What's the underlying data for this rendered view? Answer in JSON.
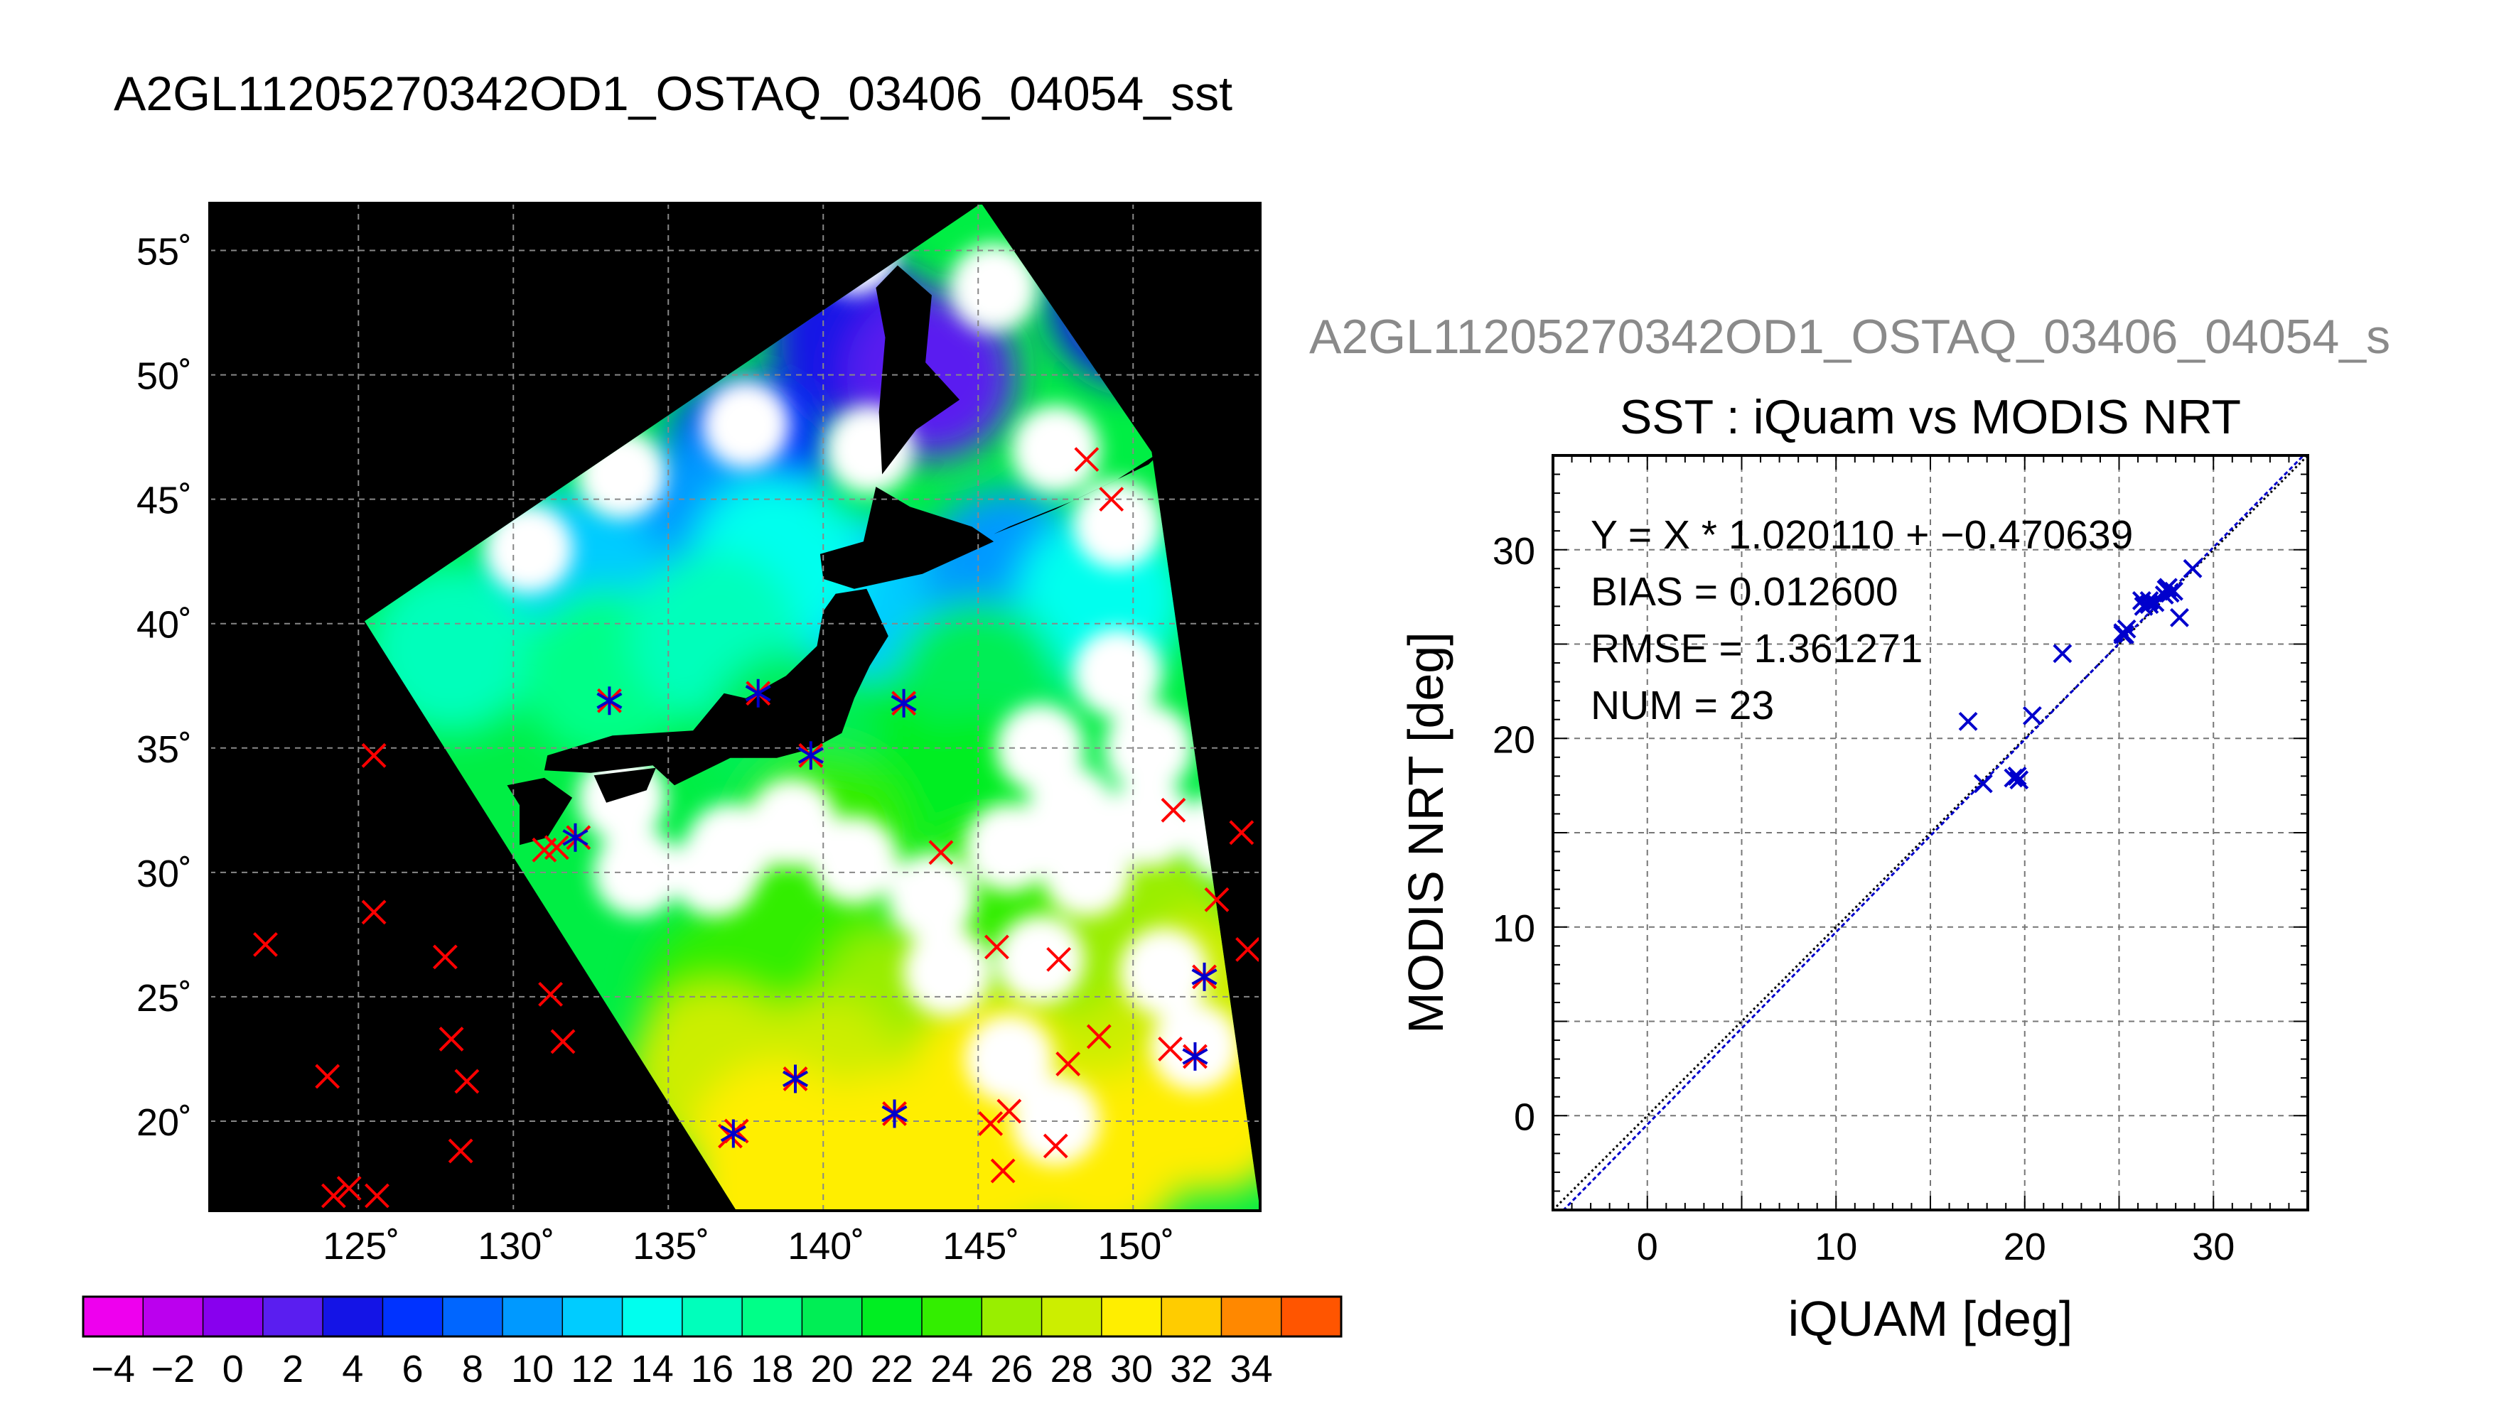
{
  "main_title": "A2GL11205270342OD1_OSTAQ_03406_04054_sst",
  "scatter_supertitle": "A2GL11205270342OD1_OSTAQ_03406_04054_s",
  "colors": {
    "background": "#ffffff",
    "land": "#000000",
    "match_marker": "#ff0000",
    "scatter_marker": "#0000cc",
    "grid": "#777777"
  },
  "map": {
    "lat_ticks": [
      {
        "value": 55,
        "label": "55˚"
      },
      {
        "value": 50,
        "label": "50˚"
      },
      {
        "value": 45,
        "label": "45˚"
      },
      {
        "value": 40,
        "label": "40˚"
      },
      {
        "value": 35,
        "label": "35˚"
      },
      {
        "value": 30,
        "label": "30˚"
      },
      {
        "value": 25,
        "label": "25˚"
      },
      {
        "value": 20,
        "label": "20˚"
      }
    ],
    "lon_ticks": [
      {
        "value": 125,
        "label": "125˚"
      },
      {
        "value": 130,
        "label": "130˚"
      },
      {
        "value": 135,
        "label": "135˚"
      },
      {
        "value": 140,
        "label": "140˚"
      },
      {
        "value": 145,
        "label": "145˚"
      },
      {
        "value": 150,
        "label": "150˚"
      }
    ],
    "lon_range": [
      120.2,
      154.1
    ],
    "lat_range": [
      16.4,
      56.9
    ],
    "swath_corners": [
      [
        125.2,
        40.1
      ],
      [
        145.1,
        56.9
      ],
      [
        150.6,
        46.9
      ],
      [
        154.1,
        16.4
      ],
      [
        137.2,
        16.4
      ]
    ],
    "sst_samples": [
      {
        "lon": 150.0,
        "lat": 53.0,
        "sst": 4
      },
      {
        "lon": 141.0,
        "lat": 51.5,
        "sst": 4
      },
      {
        "lon": 143.5,
        "lat": 50.0,
        "sst": 2
      },
      {
        "lon": 137.5,
        "lat": 46.5,
        "sst": 6
      },
      {
        "lon": 136.0,
        "lat": 44.0,
        "sst": 9
      },
      {
        "lon": 141.0,
        "lat": 41.0,
        "sst": 11
      },
      {
        "lon": 138.5,
        "lat": 42.5,
        "sst": 13
      },
      {
        "lon": 132.0,
        "lat": 42.0,
        "sst": 12
      },
      {
        "lon": 128.0,
        "lat": 39.0,
        "sst": 15
      },
      {
        "lon": 133.0,
        "lat": 38.0,
        "sst": 17
      },
      {
        "lon": 136.5,
        "lat": 39.5,
        "sst": 16
      },
      {
        "lon": 146.0,
        "lat": 42.0,
        "sst": 10
      },
      {
        "lon": 149.0,
        "lat": 41.0,
        "sst": 13
      },
      {
        "lon": 145.0,
        "lat": 37.5,
        "sst": 19
      },
      {
        "lon": 141.0,
        "lat": 34.5,
        "sst": 21
      },
      {
        "lon": 139.0,
        "lat": 35.5,
        "sst": 20
      },
      {
        "lon": 145.0,
        "lat": 33.0,
        "sst": 22
      },
      {
        "lon": 140.0,
        "lat": 31.5,
        "sst": 23
      },
      {
        "lon": 139.0,
        "lat": 28.0,
        "sst": 23
      },
      {
        "lon": 145.5,
        "lat": 28.5,
        "sst": 24
      },
      {
        "lon": 150.5,
        "lat": 28.0,
        "sst": 25
      },
      {
        "lon": 137.0,
        "lat": 25.0,
        "sst": 24
      },
      {
        "lon": 142.5,
        "lat": 24.5,
        "sst": 25
      },
      {
        "lon": 148.5,
        "lat": 24.5,
        "sst": 26
      },
      {
        "lon": 152.5,
        "lat": 25.0,
        "sst": 27
      },
      {
        "lon": 136.5,
        "lat": 22.0,
        "sst": 27
      },
      {
        "lon": 140.0,
        "lat": 21.5,
        "sst": 28
      },
      {
        "lon": 145.5,
        "lat": 21.5,
        "sst": 29
      },
      {
        "lon": 150.0,
        "lat": 21.5,
        "sst": 28
      },
      {
        "lon": 152.5,
        "lat": 20.5,
        "sst": 29
      },
      {
        "lon": 138.5,
        "lat": 19.0,
        "sst": 29
      },
      {
        "lon": 142.0,
        "lat": 18.5,
        "sst": 30
      },
      {
        "lon": 145.5,
        "lat": 18.5,
        "sst": 29
      },
      {
        "lon": 149.0,
        "lat": 18.5,
        "sst": 30
      },
      {
        "lon": 138.5,
        "lat": 17.0,
        "sst": 29
      },
      {
        "lon": 143.0,
        "lat": 16.8,
        "sst": 29
      }
    ],
    "cloud_samples": [
      {
        "lon": 137.0,
        "lat": 31.0
      },
      {
        "lon": 141.0,
        "lat": 30.5
      },
      {
        "lon": 146.0,
        "lat": 31.0
      },
      {
        "lon": 150.5,
        "lat": 32.0
      },
      {
        "lon": 134.0,
        "lat": 30.0
      },
      {
        "lon": 143.5,
        "lat": 29.0
      },
      {
        "lon": 148.5,
        "lat": 30.0
      },
      {
        "lon": 147.0,
        "lat": 26.5
      },
      {
        "lon": 146.0,
        "lat": 22.5
      },
      {
        "lon": 147.5,
        "lat": 20.0
      },
      {
        "lon": 151.0,
        "lat": 26.0
      },
      {
        "lon": 144.0,
        "lat": 26.0
      },
      {
        "lon": 136.5,
        "lat": 30.0
      },
      {
        "lon": 139.0,
        "lat": 32.0
      },
      {
        "lon": 133.5,
        "lat": 33.0
      },
      {
        "lon": 147.0,
        "lat": 35.0
      },
      {
        "lon": 150.5,
        "lat": 35.0
      },
      {
        "lon": 149.5,
        "lat": 38.0
      },
      {
        "lon": 149.5,
        "lat": 44.0
      },
      {
        "lon": 147.5,
        "lat": 47.0
      },
      {
        "lon": 145.5,
        "lat": 53.5
      },
      {
        "lon": 141.5,
        "lat": 47.0
      },
      {
        "lon": 137.5,
        "lat": 48.0
      },
      {
        "lon": 133.5,
        "lat": 46.0
      },
      {
        "lon": 130.5,
        "lat": 43.0
      },
      {
        "lon": 141.0,
        "lat": 55.0
      },
      {
        "lon": 152.0,
        "lat": 23.0
      },
      {
        "lon": 148.0,
        "lat": 32.5
      },
      {
        "lon": 153.0,
        "lat": 31.5
      }
    ],
    "land_patches": [
      {
        "name": "sakhalin",
        "lonlat": [
          [
            142.4,
            54.4
          ],
          [
            143.5,
            53.2
          ],
          [
            143.3,
            50.5
          ],
          [
            144.4,
            49.0
          ],
          [
            143.0,
            47.8
          ],
          [
            141.9,
            46.0
          ],
          [
            141.8,
            48.5
          ],
          [
            142.0,
            51.5
          ],
          [
            141.7,
            53.5
          ]
        ]
      },
      {
        "name": "hokkaido",
        "lonlat": [
          [
            141.7,
            45.5
          ],
          [
            142.8,
            44.7
          ],
          [
            144.8,
            43.9
          ],
          [
            145.5,
            43.3
          ],
          [
            143.2,
            42.0
          ],
          [
            141.0,
            41.4
          ],
          [
            140.0,
            41.8
          ],
          [
            139.9,
            42.8
          ],
          [
            141.3,
            43.3
          ]
        ]
      },
      {
        "name": "honshu",
        "lonlat": [
          [
            141.4,
            41.4
          ],
          [
            142.1,
            39.5
          ],
          [
            141.5,
            38.3
          ],
          [
            141.0,
            37.0
          ],
          [
            140.6,
            35.6
          ],
          [
            139.7,
            35.0
          ],
          [
            138.5,
            34.6
          ],
          [
            137.0,
            34.6
          ],
          [
            135.2,
            33.5
          ],
          [
            134.5,
            34.3
          ],
          [
            132.5,
            34.0
          ],
          [
            131.0,
            34.1
          ],
          [
            131.1,
            34.7
          ],
          [
            133.2,
            35.5
          ],
          [
            135.8,
            35.7
          ],
          [
            136.8,
            37.2
          ],
          [
            137.5,
            37.0
          ],
          [
            138.8,
            37.9
          ],
          [
            139.8,
            39.1
          ],
          [
            140.0,
            40.5
          ],
          [
            140.4,
            41.2
          ]
        ]
      },
      {
        "name": "shikoku",
        "lonlat": [
          [
            132.6,
            33.9
          ],
          [
            134.6,
            34.2
          ],
          [
            134.3,
            33.3
          ],
          [
            133.0,
            32.8
          ]
        ]
      },
      {
        "name": "kyushu",
        "lonlat": [
          [
            129.8,
            33.5
          ],
          [
            131.0,
            33.8
          ],
          [
            131.9,
            33.0
          ],
          [
            131.1,
            31.4
          ],
          [
            130.2,
            31.1
          ],
          [
            130.2,
            32.7
          ]
        ]
      },
      {
        "name": "kurils",
        "lonlat": [
          [
            145.5,
            43.6
          ],
          [
            147.5,
            44.6
          ],
          [
            149.5,
            45.8
          ],
          [
            151.0,
            47.0
          ],
          [
            150.5,
            46.4
          ],
          [
            148.0,
            44.9
          ],
          [
            146.0,
            43.9
          ]
        ]
      }
    ],
    "match_points": [
      {
        "lon": 125.5,
        "lat": 34.7
      },
      {
        "lon": 125.5,
        "lat": 28.4
      },
      {
        "lon": 122.0,
        "lat": 27.1
      },
      {
        "lon": 127.8,
        "lat": 26.6
      },
      {
        "lon": 128.0,
        "lat": 23.3
      },
      {
        "lon": 128.5,
        "lat": 21.6
      },
      {
        "lon": 124.0,
        "lat": 21.8
      },
      {
        "lon": 128.3,
        "lat": 18.8
      },
      {
        "lon": 124.2,
        "lat": 17.0
      },
      {
        "lon": 124.7,
        "lat": 17.3
      },
      {
        "lon": 125.6,
        "lat": 17.0
      },
      {
        "lon": 131.2,
        "lat": 25.1
      },
      {
        "lon": 131.6,
        "lat": 23.2
      },
      {
        "lon": 131.0,
        "lat": 30.9
      },
      {
        "lon": 131.4,
        "lat": 31.0
      },
      {
        "lon": 132.1,
        "lat": 31.4
      },
      {
        "lon": 133.1,
        "lat": 36.9
      },
      {
        "lon": 137.9,
        "lat": 37.2
      },
      {
        "lon": 139.6,
        "lat": 34.7
      },
      {
        "lon": 142.6,
        "lat": 36.8
      },
      {
        "lon": 143.8,
        "lat": 30.8
      },
      {
        "lon": 145.6,
        "lat": 27.0
      },
      {
        "lon": 147.6,
        "lat": 26.5
      },
      {
        "lon": 148.5,
        "lat": 46.6
      },
      {
        "lon": 149.3,
        "lat": 45.0
      },
      {
        "lon": 151.3,
        "lat": 32.5
      },
      {
        "lon": 153.5,
        "lat": 31.6
      },
      {
        "lon": 152.7,
        "lat": 28.9
      },
      {
        "lon": 153.7,
        "lat": 26.9
      },
      {
        "lon": 152.3,
        "lat": 25.8
      },
      {
        "lon": 151.2,
        "lat": 22.9
      },
      {
        "lon": 152.0,
        "lat": 22.6
      },
      {
        "lon": 148.9,
        "lat": 23.4
      },
      {
        "lon": 147.9,
        "lat": 22.3
      },
      {
        "lon": 145.4,
        "lat": 19.9
      },
      {
        "lon": 146.0,
        "lat": 20.4
      },
      {
        "lon": 145.8,
        "lat": 18.0
      },
      {
        "lon": 147.5,
        "lat": 19.0
      },
      {
        "lon": 142.3,
        "lat": 20.3
      },
      {
        "lon": 139.1,
        "lat": 21.7
      },
      {
        "lon": 137.0,
        "lat": 19.4
      },
      {
        "lon": 137.2,
        "lat": 19.6
      }
    ],
    "matched_points": [
      {
        "lon": 133.1,
        "lat": 36.9
      },
      {
        "lon": 137.9,
        "lat": 37.2
      },
      {
        "lon": 139.6,
        "lat": 34.7
      },
      {
        "lon": 142.6,
        "lat": 36.8
      },
      {
        "lon": 132.0,
        "lat": 31.4
      },
      {
        "lon": 152.3,
        "lat": 25.8
      },
      {
        "lon": 152.0,
        "lat": 22.6
      },
      {
        "lon": 139.1,
        "lat": 21.7
      },
      {
        "lon": 142.3,
        "lat": 20.3
      },
      {
        "lon": 137.1,
        "lat": 19.5
      }
    ]
  },
  "colorbar": {
    "min": -5,
    "max": 35,
    "bin_width": 2,
    "colors": [
      "#ee00ee",
      "#bb00ee",
      "#8800ee",
      "#5a1ef0",
      "#1414e6",
      "#0033ff",
      "#0066ff",
      "#0099ff",
      "#00ccff",
      "#00ffee",
      "#00ffbb",
      "#00ff88",
      "#00ee55",
      "#00ee22",
      "#33ee00",
      "#99ee00",
      "#ccee00",
      "#ffee00",
      "#ffcc00",
      "#ff8800",
      "#ff5500"
    ],
    "ticks": [
      {
        "value": -4,
        "label": "−4"
      },
      {
        "value": -2,
        "label": "−2"
      },
      {
        "value": 0,
        "label": "0"
      },
      {
        "value": 2,
        "label": "2"
      },
      {
        "value": 4,
        "label": "4"
      },
      {
        "value": 6,
        "label": "6"
      },
      {
        "value": 8,
        "label": "8"
      },
      {
        "value": 10,
        "label": "10"
      },
      {
        "value": 12,
        "label": "12"
      },
      {
        "value": 14,
        "label": "14"
      },
      {
        "value": 16,
        "label": "16"
      },
      {
        "value": 18,
        "label": "18"
      },
      {
        "value": 20,
        "label": "20"
      },
      {
        "value": 22,
        "label": "22"
      },
      {
        "value": 24,
        "label": "24"
      },
      {
        "value": 26,
        "label": "26"
      },
      {
        "value": 28,
        "label": "28"
      },
      {
        "value": 30,
        "label": "30"
      },
      {
        "value": 32,
        "label": "32"
      },
      {
        "value": 34,
        "label": "34"
      }
    ]
  },
  "chart_data": {
    "type": "scatter",
    "title": "SST : iQuam vs MODIS NRT",
    "xlabel": "iQUAM [deg]",
    "ylabel": "MODIS NRT [deg]",
    "xlim": [
      -5,
      35
    ],
    "ylim": [
      -5,
      35
    ],
    "xticks": [
      0,
      10,
      20,
      30
    ],
    "yticks": [
      0,
      10,
      20,
      30
    ],
    "grid": true,
    "regression": {
      "slope": 1.02011,
      "intercept": -0.470639
    },
    "stats_text": [
      "Y = X * 1.020110 + −0.470639",
      "BIAS = 0.012600",
      "RMSE = 1.361271",
      "NUM = 23"
    ],
    "points": [
      {
        "x": 17.0,
        "y": 20.9
      },
      {
        "x": 17.8,
        "y": 17.6
      },
      {
        "x": 19.4,
        "y": 17.9
      },
      {
        "x": 19.7,
        "y": 17.8
      },
      {
        "x": 19.6,
        "y": 18.0
      },
      {
        "x": 20.4,
        "y": 21.2
      },
      {
        "x": 22.0,
        "y": 24.5
      },
      {
        "x": 25.2,
        "y": 25.6
      },
      {
        "x": 25.4,
        "y": 25.8
      },
      {
        "x": 25.3,
        "y": 25.5
      },
      {
        "x": 26.2,
        "y": 27.3
      },
      {
        "x": 26.6,
        "y": 27.1
      },
      {
        "x": 26.9,
        "y": 27.2
      },
      {
        "x": 27.4,
        "y": 27.6
      },
      {
        "x": 27.6,
        "y": 28.0
      },
      {
        "x": 27.9,
        "y": 27.8
      },
      {
        "x": 28.2,
        "y": 26.4
      },
      {
        "x": 28.9,
        "y": 29.0
      },
      {
        "x": 26.6,
        "y": 27.3
      },
      {
        "x": 25.2,
        "y": 25.5
      },
      {
        "x": 27.5,
        "y": 27.9
      },
      {
        "x": 26.3,
        "y": 27.0
      },
      {
        "x": 27.7,
        "y": 27.7
      }
    ]
  }
}
